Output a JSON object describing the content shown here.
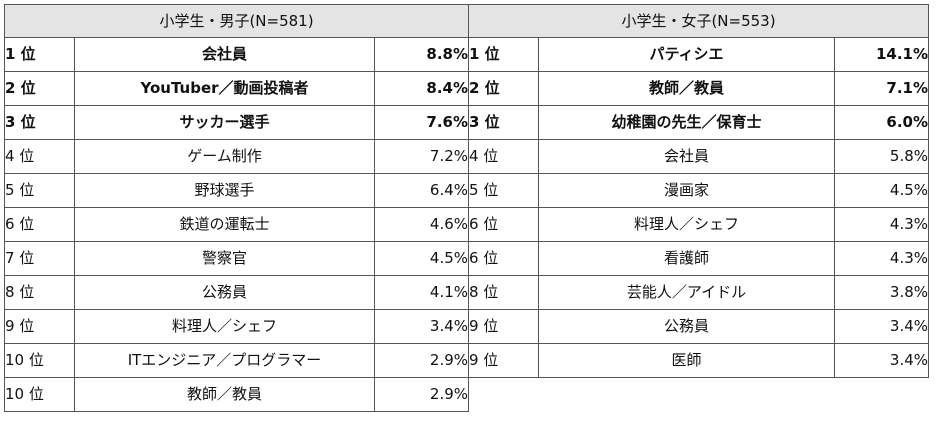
{
  "boys": {
    "title": "小学生・男子(N=581)",
    "rows": [
      {
        "rank": "1 位",
        "job": "会社員",
        "pct": "8.8%",
        "bold": true
      },
      {
        "rank": "2 位",
        "job": "YouTuber／動画投稿者",
        "pct": "8.4%",
        "bold": true
      },
      {
        "rank": "3 位",
        "job": "サッカー選手",
        "pct": "7.6%",
        "bold": true
      },
      {
        "rank": "4 位",
        "job": "ゲーム制作",
        "pct": "7.2%",
        "bold": false
      },
      {
        "rank": "5 位",
        "job": "野球選手",
        "pct": "6.4%",
        "bold": false
      },
      {
        "rank": "6 位",
        "job": "鉄道の運転士",
        "pct": "4.6%",
        "bold": false
      },
      {
        "rank": "7 位",
        "job": "警察官",
        "pct": "4.5%",
        "bold": false
      },
      {
        "rank": "8 位",
        "job": "公務員",
        "pct": "4.1%",
        "bold": false
      },
      {
        "rank": "9 位",
        "job": "料理人／シェフ",
        "pct": "3.4%",
        "bold": false
      },
      {
        "rank": "10 位",
        "job": "ITエンジニア／プログラマー",
        "pct": "2.9%",
        "bold": false
      },
      {
        "rank": "10 位",
        "job": "教師／教員",
        "pct": "2.9%",
        "bold": false
      }
    ]
  },
  "girls": {
    "title": "小学生・女子(N=553)",
    "rows": [
      {
        "rank": "1 位",
        "job": "パティシエ",
        "pct": "14.1%",
        "bold": true
      },
      {
        "rank": "2 位",
        "job": "教師／教員",
        "pct": "7.1%",
        "bold": true
      },
      {
        "rank": "3 位",
        "job": "幼稚園の先生／保育士",
        "pct": "6.0%",
        "bold": true
      },
      {
        "rank": "4 位",
        "job": "会社員",
        "pct": "5.8%",
        "bold": false
      },
      {
        "rank": "5 位",
        "job": "漫画家",
        "pct": "4.5%",
        "bold": false
      },
      {
        "rank": "6 位",
        "job": "料理人／シェフ",
        "pct": "4.3%",
        "bold": false
      },
      {
        "rank": "6 位",
        "job": "看護師",
        "pct": "4.3%",
        "bold": false
      },
      {
        "rank": "8 位",
        "job": "芸能人／アイドル",
        "pct": "3.8%",
        "bold": false
      },
      {
        "rank": "9 位",
        "job": "公務員",
        "pct": "3.4%",
        "bold": false
      },
      {
        "rank": "9 位",
        "job": "医師",
        "pct": "3.4%",
        "bold": false
      }
    ]
  }
}
